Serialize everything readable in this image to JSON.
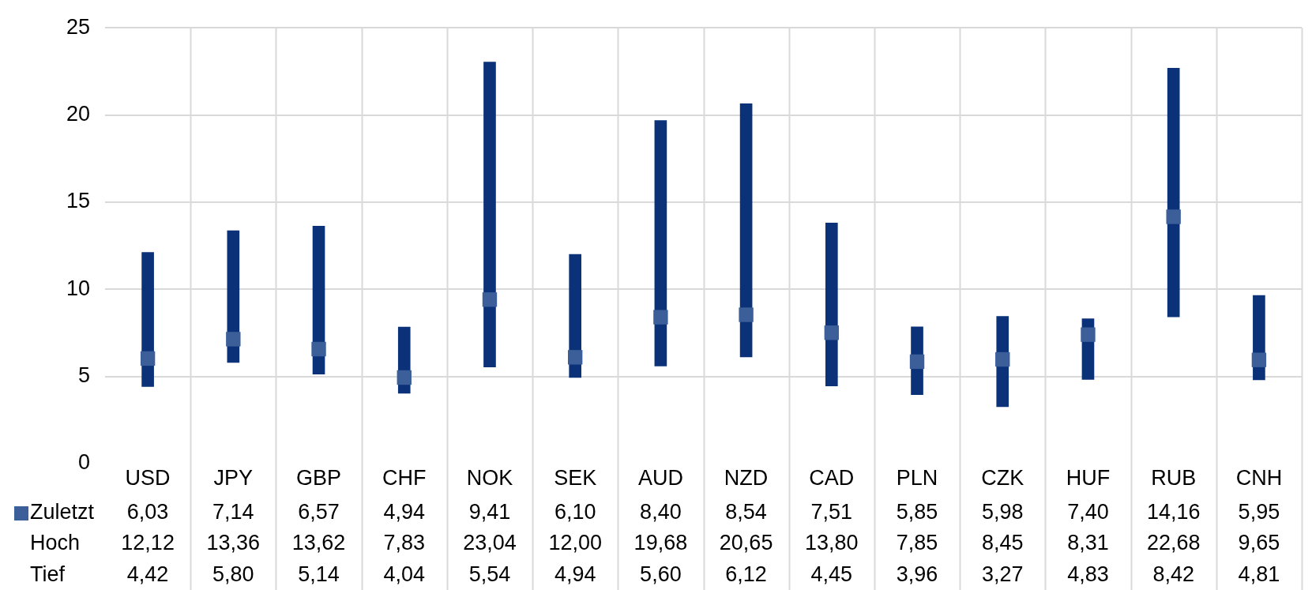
{
  "chart_data": {
    "type": "bar",
    "categories": [
      "USD",
      "JPY",
      "GBP",
      "CHF",
      "NOK",
      "SEK",
      "AUD",
      "NZD",
      "CAD",
      "PLN",
      "CZK",
      "HUF",
      "RUB",
      "CNH"
    ],
    "series": [
      {
        "color": "#0b3278",
        "base": [
          4.42,
          5.8,
          5.14,
          4.04,
          5.54,
          4.94,
          5.6,
          6.12,
          4.45,
          3.96,
          3.27,
          4.83,
          8.42,
          4.81
        ],
        "values": [
          7.7,
          7.56,
          8.48,
          3.79,
          17.5,
          7.06,
          14.08,
          14.53,
          9.35,
          3.89,
          5.18,
          3.48,
          14.26,
          4.84
        ]
      },
      {
        "name": "Zuletzt",
        "type": "scatter",
        "marker": "square",
        "color": "#3c5f99",
        "values": [
          6.03,
          7.14,
          6.57,
          4.94,
          9.41,
          6.1,
          8.4,
          8.54,
          7.51,
          5.85,
          5.98,
          7.4,
          14.16,
          5.95
        ],
        "value_labels": [
          "6,03",
          "7,14",
          "6,57",
          "4,94",
          "9,41",
          "6,10",
          "8,40",
          "8,54",
          "7,51",
          "5,85",
          "5,98",
          "7,40",
          "14,16",
          "5,95"
        ]
      }
    ],
    "annotations": [
      "Hoch",
      "12,12",
      "13,36",
      "13,62",
      "7,83",
      "23,04",
      "12,00",
      "19,68",
      "20,65",
      "13,80",
      "7,85",
      "8,45",
      "8,31",
      "22,68",
      "9,65",
      "Tief",
      "4,42",
      "5,80",
      "5,14",
      "4,04",
      "5,54",
      "4,94",
      "5,60",
      "6,12",
      "4,45",
      "3,96",
      "3,27",
      "4,83",
      "8,42",
      "4,81"
    ],
    "ylim": [
      0,
      25
    ],
    "yticks": [
      0,
      5,
      10,
      15,
      20,
      25
    ],
    "grid": true,
    "legend": "bottom left"
  }
}
